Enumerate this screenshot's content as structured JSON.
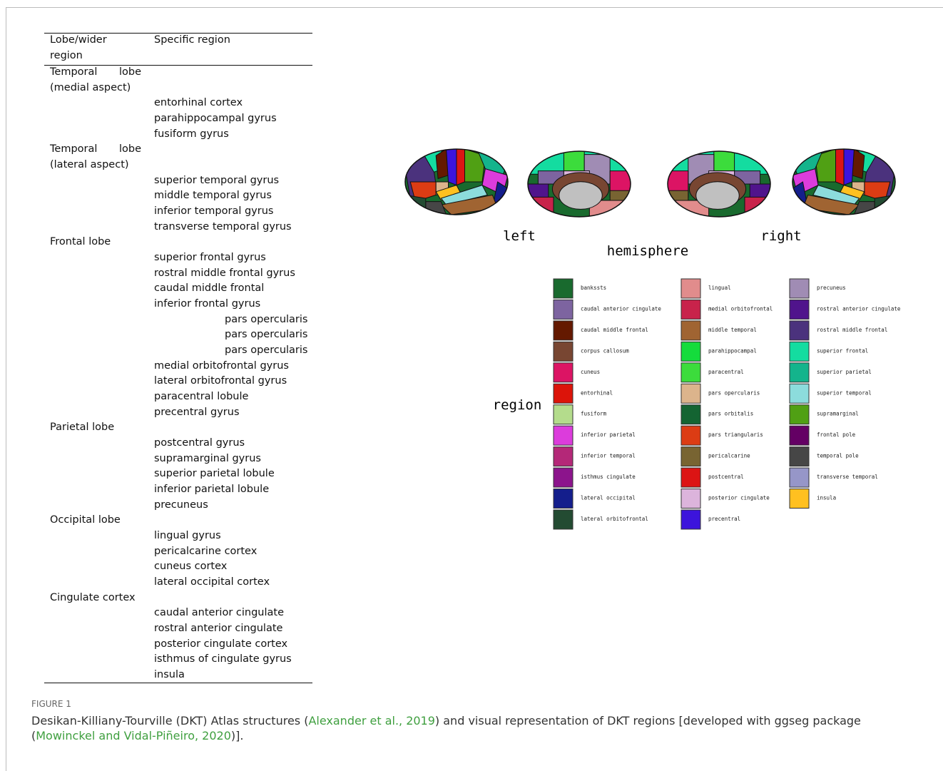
{
  "table": {
    "header": [
      "Lobe/wider region",
      "Specific region"
    ],
    "groups": [
      {
        "lobe": "Temporal lobe (medial aspect)",
        "regions": [
          "entorhinal cortex",
          "parahippocampal gyrus",
          "fusiform gyrus"
        ]
      },
      {
        "lobe": "Temporal lobe (lateral aspect)",
        "regions": [
          "superior temporal gyrus",
          "middle temporal gyrus",
          "inferior temporal gyrus",
          "transverse temporal gyrus"
        ]
      },
      {
        "lobe": "Frontal lobe",
        "regions": [
          "superior frontal gyrus",
          "rostral middle frontal gyrus",
          "caudal middle frontal",
          {
            "name": "inferior frontal gyrus",
            "subregions": [
              "pars opercularis",
              "pars opercularis",
              "pars opercularis"
            ]
          },
          "medial orbitofrontal gyrus",
          "lateral orbitofrontal gyrus",
          "paracentral lobule",
          "precentral gyrus"
        ]
      },
      {
        "lobe": "Parietal lobe",
        "regions": [
          "postcentral gyrus",
          "supramarginal gyrus",
          "superior parietal lobule",
          "inferior parietal lobule",
          "precuneus"
        ]
      },
      {
        "lobe": "Occipital lobe",
        "regions": [
          "lingual gyrus",
          "pericalcarine cortex",
          "cuneus cortex",
          "lateral occipital cortex"
        ]
      },
      {
        "lobe": "Cingulate cortex",
        "regions": [
          "caudal anterior cingulate",
          "rostral anterior cingulate",
          "posterior cingulate cortex",
          "isthmus of cingulate gyrus",
          "insula"
        ]
      }
    ]
  },
  "figure": {
    "hemisphere_labels": [
      "left",
      "right"
    ],
    "hemisphere_title": "hemisphere",
    "legend_title": "region",
    "legend": [
      {
        "name": "bankssts",
        "color": "#196a2e"
      },
      {
        "name": "caudal anterior cingulate",
        "color": "#7d64a0"
      },
      {
        "name": "caudal middle frontal",
        "color": "#641900"
      },
      {
        "name": "corpus callosum",
        "color": "#784632"
      },
      {
        "name": "cuneus",
        "color": "#dc1464"
      },
      {
        "name": "entorhinal",
        "color": "#dc140a"
      },
      {
        "name": "fusiform",
        "color": "#b4dc8c"
      },
      {
        "name": "inferior parietal",
        "color": "#dc3cdc"
      },
      {
        "name": "inferior temporal",
        "color": "#b42878"
      },
      {
        "name": "isthmus cingulate",
        "color": "#8c148c"
      },
      {
        "name": "lateral occipital",
        "color": "#141e8c"
      },
      {
        "name": "lateral orbitofrontal",
        "color": "#234b32"
      },
      {
        "name": "lingual",
        "color": "#e18c8c"
      },
      {
        "name": "medial orbitofrontal",
        "color": "#c8234b"
      },
      {
        "name": "middle temporal",
        "color": "#a06432"
      },
      {
        "name": "parahippocampal",
        "color": "#14dc3c"
      },
      {
        "name": "paracentral",
        "color": "#3cdc3c"
      },
      {
        "name": "pars opercularis",
        "color": "#dcb48c"
      },
      {
        "name": "pars orbitalis",
        "color": "#146432"
      },
      {
        "name": "pars triangularis",
        "color": "#dc3c14"
      },
      {
        "name": "pericalcarine",
        "color": "#786432"
      },
      {
        "name": "postcentral",
        "color": "#dc1414"
      },
      {
        "name": "posterior cingulate",
        "color": "#dcb4dc"
      },
      {
        "name": "precentral",
        "color": "#3c14dc"
      },
      {
        "name": "precuneus",
        "color": "#a08cb4"
      },
      {
        "name": "rostral anterior cingulate",
        "color": "#50148c"
      },
      {
        "name": "rostral middle frontal",
        "color": "#4b327d"
      },
      {
        "name": "superior frontal",
        "color": "#14dca0"
      },
      {
        "name": "superior parietal",
        "color": "#14b48c"
      },
      {
        "name": "superior temporal",
        "color": "#8cdcdc"
      },
      {
        "name": "supramarginal",
        "color": "#50a014"
      },
      {
        "name": "frontal pole",
        "color": "#640064"
      },
      {
        "name": "temporal pole",
        "color": "#464646"
      },
      {
        "name": "transverse temporal",
        "color": "#9696c8"
      },
      {
        "name": "insula",
        "color": "#ffc020"
      }
    ]
  },
  "caption": {
    "label": "FIGURE 1",
    "text_before": "Desikan-Killiany-Tourville (DKT) Atlas structures (",
    "link_1": "Alexander et al., 2019",
    "text_middle": ") and visual representation of DKT regions [developed with ggseg package (",
    "link_2": "Mowinckel and Vidal-Piñeiro, 2020",
    "text_after": ")]."
  }
}
